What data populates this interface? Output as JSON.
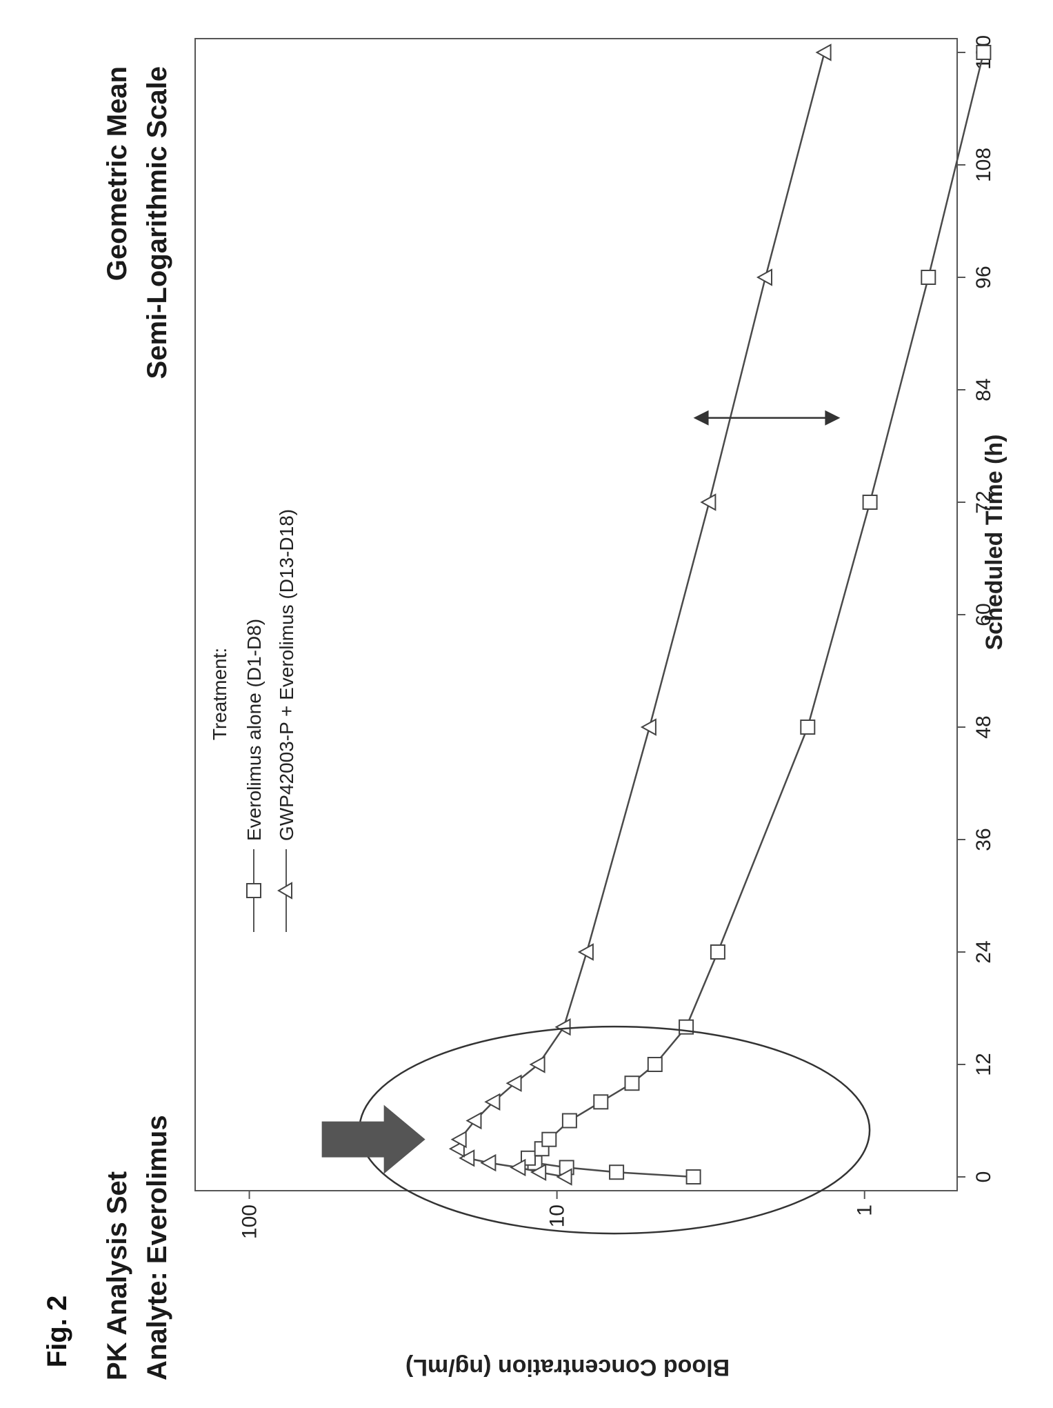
{
  "figure_label": "Fig. 2",
  "chart_data": {
    "type": "line",
    "header": {
      "left_line1": "PK Analysis Set",
      "left_line2": "Analyte: Everolimus",
      "right_line1": "Geometric Mean",
      "right_line2": "Semi-Logarithmic Scale"
    },
    "xlabel": "Scheduled Time (h)",
    "ylabel": "Blood Concentration (ng/mL)",
    "xlim": [
      0,
      120
    ],
    "xticks": [
      "0",
      "12",
      "24",
      "36",
      "48",
      "60",
      "72",
      "84",
      "96",
      "108",
      "120"
    ],
    "yscale": "log",
    "ylim": [
      0.5,
      150
    ],
    "yticks": [
      "1",
      "10",
      "100"
    ],
    "grid": false,
    "legend_title": "Treatment:",
    "legend_position": "top-center",
    "series": [
      {
        "name": "Everolimus alone (D1-D8)",
        "marker": "square",
        "x": [
          0,
          0.5,
          1,
          1.5,
          2,
          3,
          4,
          6,
          8,
          10,
          12,
          16,
          24,
          48,
          72,
          96,
          120
        ],
        "y": [
          3.6,
          6.4,
          9.3,
          11.8,
          12.4,
          11.2,
          10.6,
          9.1,
          7.2,
          5.7,
          4.8,
          3.8,
          3.0,
          1.53,
          0.96,
          0.62,
          0.41
        ]
      },
      {
        "name": "GWP42003-P + Everolimus (D13-D18)",
        "marker": "triangle",
        "x": [
          0,
          0.5,
          1,
          1.5,
          2,
          3,
          4,
          6,
          8,
          10,
          12,
          16,
          24,
          48,
          72,
          96,
          120
        ],
        "y": [
          9.4,
          11.4,
          13.3,
          16.6,
          19.5,
          21.0,
          20.7,
          18.5,
          16.1,
          13.7,
          11.5,
          9.5,
          8.0,
          5.0,
          3.2,
          2.1,
          1.35
        ]
      }
    ],
    "annotations": {
      "highlight_ellipse": true,
      "pointer_arrow": true,
      "difference_arrow_x": 81
    }
  }
}
